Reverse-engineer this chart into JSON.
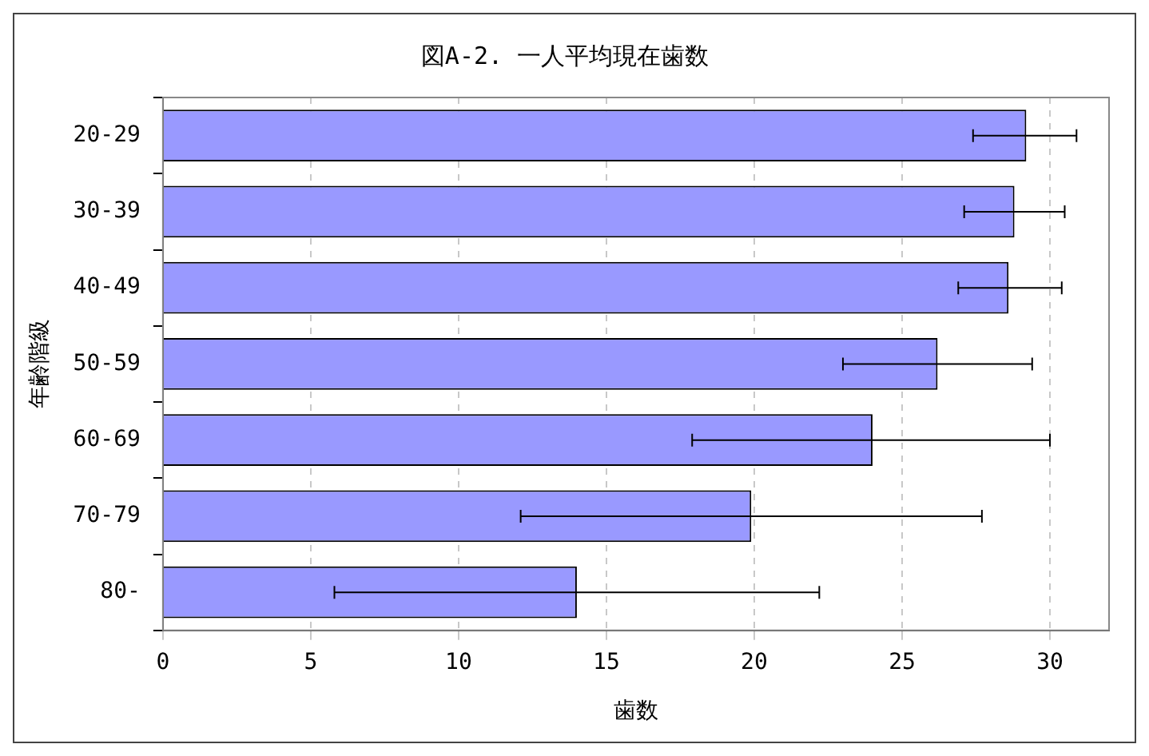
{
  "chart_data": {
    "type": "bar",
    "orientation": "horizontal",
    "title": "図A-2. 一人平均現在歯数",
    "xlabel": "歯数",
    "ylabel": "年齢階級",
    "categories": [
      "20-29",
      "30-39",
      "40-49",
      "50-59",
      "60-69",
      "70-79",
      "80-"
    ],
    "values": [
      29.2,
      28.8,
      28.6,
      26.2,
      24.0,
      19.9,
      14.0
    ],
    "errors": [
      [
        27.4,
        30.9
      ],
      [
        27.1,
        30.5
      ],
      [
        26.9,
        30.4
      ],
      [
        23.0,
        29.4
      ],
      [
        17.9,
        30.0
      ],
      [
        12.1,
        27.7
      ],
      [
        5.8,
        22.2
      ]
    ],
    "color": "#9999ff",
    "xlim": [
      0,
      32
    ],
    "xticks": [
      0,
      5,
      10,
      15,
      20,
      25,
      30
    ],
    "grid": "x",
    "legend": false
  }
}
